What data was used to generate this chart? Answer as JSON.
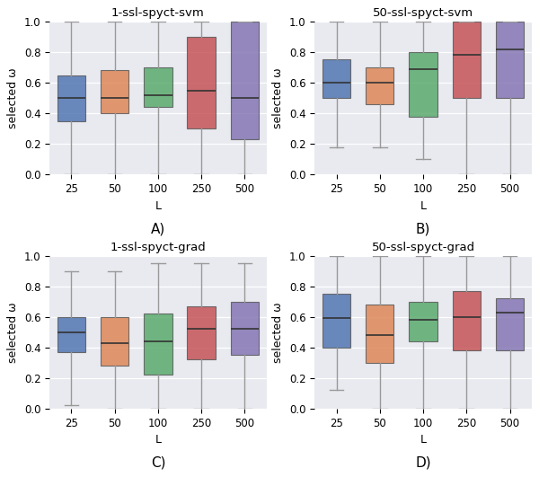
{
  "titles": [
    "1-ssl-spyct-svm",
    "50-ssl-spyct-svm",
    "1-ssl-spyct-grad",
    "50-ssl-spyct-grad"
  ],
  "panel_labels": [
    "A)",
    "B)",
    "C)",
    "D)"
  ],
  "categories": [
    "25",
    "50",
    "100",
    "250",
    "500"
  ],
  "xlabel": "L",
  "ylabel": "selected ω",
  "ylim": [
    0.0,
    1.0
  ],
  "yticks": [
    0.0,
    0.2,
    0.4,
    0.6,
    0.8,
    1.0
  ],
  "colors": [
    "#4C72B0",
    "#DD8452",
    "#55A868",
    "#C44E52",
    "#8172B2"
  ],
  "background_color": "#E8EAF0",
  "fig_background": "#FFFFFF",
  "box_data": {
    "A": {
      "whislo": [
        0.0,
        0.0,
        0.0,
        0.0,
        0.0
      ],
      "q1": [
        0.35,
        0.4,
        0.44,
        0.3,
        0.23
      ],
      "med": [
        0.5,
        0.5,
        0.52,
        0.55,
        0.5
      ],
      "q3": [
        0.65,
        0.68,
        0.7,
        0.9,
        1.0
      ],
      "whishi": [
        1.0,
        1.0,
        1.0,
        1.0,
        1.0
      ]
    },
    "B": {
      "whislo": [
        0.18,
        0.18,
        0.1,
        0.0,
        0.0
      ],
      "q1": [
        0.5,
        0.46,
        0.38,
        0.5,
        0.5
      ],
      "med": [
        0.6,
        0.6,
        0.69,
        0.78,
        0.82
      ],
      "q3": [
        0.75,
        0.7,
        0.8,
        1.0,
        1.0
      ],
      "whishi": [
        1.0,
        1.0,
        1.0,
        1.0,
        1.0
      ]
    },
    "C": {
      "whislo": [
        0.02,
        0.0,
        0.0,
        0.0,
        0.0
      ],
      "q1": [
        0.37,
        0.28,
        0.22,
        0.32,
        0.35
      ],
      "med": [
        0.5,
        0.43,
        0.44,
        0.52,
        0.52
      ],
      "q3": [
        0.6,
        0.6,
        0.62,
        0.67,
        0.7
      ],
      "whishi": [
        0.9,
        0.9,
        0.95,
        0.95,
        0.95
      ]
    },
    "D": {
      "whislo": [
        0.12,
        0.0,
        0.0,
        0.0,
        0.0
      ],
      "q1": [
        0.4,
        0.3,
        0.44,
        0.38,
        0.38
      ],
      "med": [
        0.59,
        0.48,
        0.58,
        0.6,
        0.63
      ],
      "q3": [
        0.75,
        0.68,
        0.7,
        0.77,
        0.72
      ],
      "whishi": [
        1.0,
        1.0,
        1.0,
        1.0,
        1.0
      ]
    }
  }
}
